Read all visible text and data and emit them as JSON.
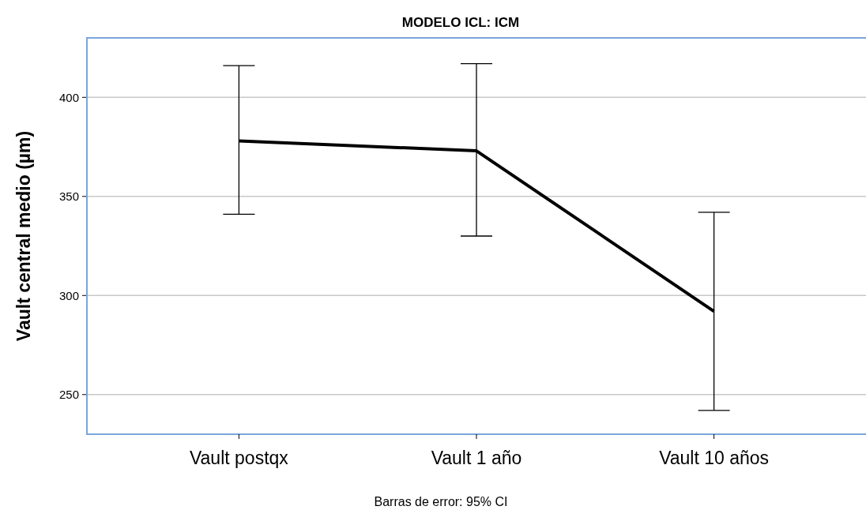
{
  "chart_data": {
    "type": "line",
    "title": "MODELO ICL: ICM",
    "ylabel": "Vault central medio (µm)",
    "categories": [
      "Vault postqx",
      "Vault 1 año",
      "Vault 10 años"
    ],
    "values": [
      378,
      373,
      292
    ],
    "color": "#000000",
    "errors": [
      [
        341,
        416
      ],
      [
        330,
        417
      ],
      [
        242,
        342
      ]
    ],
    "ylim": [
      230,
      430
    ],
    "yticks": [
      250,
      300,
      350,
      400
    ],
    "grid": "y",
    "marker": "none",
    "line_style": "solid",
    "annotations": [
      "Barras de error: 95% CI"
    ]
  }
}
